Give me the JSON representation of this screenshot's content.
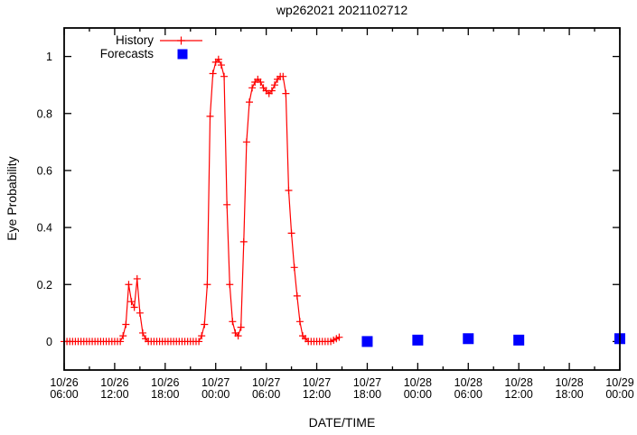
{
  "chart_data": {
    "type": "line",
    "title": "wp262021 2021102712",
    "xlabel": "DATE/TIME",
    "ylabel": "Eye Probability",
    "x_unit_hours_since": "10/26 06:00",
    "xlim_hours": [
      0,
      66
    ],
    "ylim": [
      -0.1,
      1.1
    ],
    "grid": false,
    "legend_position": "top-left-inside",
    "colors": {
      "history": "#ff0000",
      "forecasts": "#0000ff",
      "frame": "#000000",
      "background": "#ffffff"
    },
    "y_ticks": [
      {
        "v": 0.0,
        "label": "0"
      },
      {
        "v": 0.2,
        "label": "0.2"
      },
      {
        "v": 0.4,
        "label": "0.4"
      },
      {
        "v": 0.6,
        "label": "0.6"
      },
      {
        "v": 0.8,
        "label": "0.8"
      },
      {
        "v": 1.0,
        "label": "1"
      }
    ],
    "x_major_ticks": [
      {
        "t": 0,
        "line1": "10/26",
        "line2": "06:00"
      },
      {
        "t": 6,
        "line1": "10/26",
        "line2": "12:00"
      },
      {
        "t": 12,
        "line1": "10/26",
        "line2": "18:00"
      },
      {
        "t": 18,
        "line1": "10/27",
        "line2": "00:00"
      },
      {
        "t": 24,
        "line1": "10/27",
        "line2": "06:00"
      },
      {
        "t": 30,
        "line1": "10/27",
        "line2": "12:00"
      },
      {
        "t": 36,
        "line1": "10/27",
        "line2": "18:00"
      },
      {
        "t": 42,
        "line1": "10/28",
        "line2": "00:00"
      },
      {
        "t": 48,
        "line1": "10/28",
        "line2": "06:00"
      },
      {
        "t": 54,
        "line1": "10/28",
        "line2": "12:00"
      },
      {
        "t": 60,
        "line1": "10/28",
        "line2": "18:00"
      },
      {
        "t": 66,
        "line1": "10/29",
        "line2": "00:00"
      }
    ],
    "x_minor_step_hours": 3,
    "legend": [
      {
        "label": "History",
        "color": "#ff0000",
        "marker": "plus-line"
      },
      {
        "label": "Forecasts",
        "color": "#0000ff",
        "marker": "filled-square"
      }
    ],
    "series": [
      {
        "name": "History",
        "style": "line-with-plus-markers",
        "color": "#ff0000",
        "start_hour": 0,
        "step_hours": 0.333333,
        "values": [
          0,
          0,
          0,
          0,
          0,
          0,
          0,
          0,
          0,
          0,
          0,
          0,
          0,
          0,
          0,
          0,
          0,
          0,
          0,
          0,
          0,
          0.02,
          0.06,
          0.2,
          0.14,
          0.12,
          0.22,
          0.1,
          0.03,
          0.01,
          0,
          0,
          0,
          0,
          0,
          0,
          0,
          0,
          0,
          0,
          0,
          0,
          0,
          0,
          0,
          0,
          0,
          0,
          0,
          0.02,
          0.06,
          0.2,
          0.79,
          0.94,
          0.98,
          0.99,
          0.97,
          0.93,
          0.48,
          0.2,
          0.07,
          0.03,
          0.02,
          0.05,
          0.35,
          0.7,
          0.84,
          0.89,
          0.91,
          0.92,
          0.91,
          0.89,
          0.88,
          0.87,
          0.88,
          0.9,
          0.92,
          0.93,
          0.93,
          0.87,
          0.53,
          0.38,
          0.26,
          0.16,
          0.07,
          0.02,
          0.01,
          0,
          0,
          0,
          0,
          0,
          0,
          0,
          0,
          0,
          0.005,
          0.01,
          0.015
        ]
      },
      {
        "name": "Forecasts",
        "style": "filled-square-markers",
        "color": "#0000ff",
        "points": [
          {
            "t": 36,
            "v": 0.0,
            "time_label": "10/27 18:00"
          },
          {
            "t": 42,
            "v": 0.005,
            "time_label": "10/28 00:00"
          },
          {
            "t": 48,
            "v": 0.01,
            "time_label": "10/28 06:00"
          },
          {
            "t": 54,
            "v": 0.005,
            "time_label": "10/28 12:00"
          },
          {
            "t": 66,
            "v": 0.01,
            "time_label": "10/29 00:00"
          }
        ]
      }
    ]
  }
}
